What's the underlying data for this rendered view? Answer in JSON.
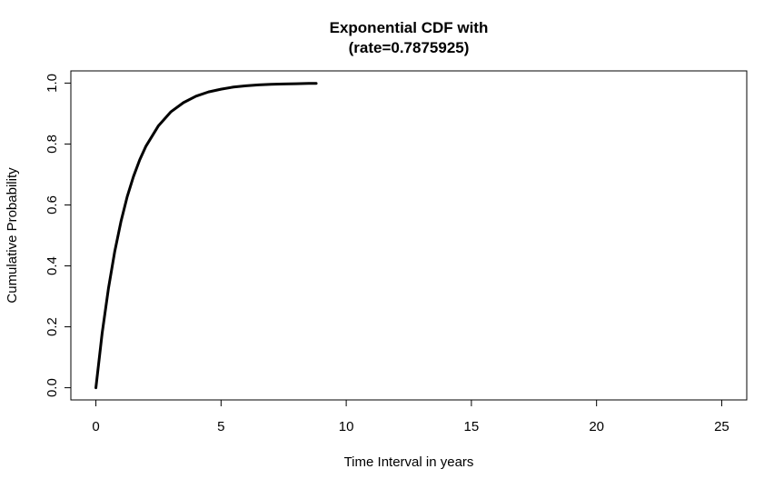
{
  "chart_data": {
    "type": "line",
    "title_line1": "Exponential CDF with",
    "title_line2": "(rate=0.7875925)",
    "xlabel": "Time Interval in years",
    "ylabel": "Cumulative Probability",
    "xlim": [
      -1,
      26
    ],
    "ylim": [
      -0.04,
      1.04
    ],
    "x_ticks": [
      0,
      5,
      10,
      15,
      20,
      25
    ],
    "x_tick_labels": [
      "0",
      "5",
      "10",
      "15",
      "20",
      "25"
    ],
    "y_ticks": [
      0.0,
      0.2,
      0.4,
      0.6,
      0.8,
      1.0
    ],
    "y_tick_labels": [
      "0.0",
      "0.2",
      "0.4",
      "0.6",
      "0.8",
      "1.0"
    ],
    "grid": false,
    "series": [
      {
        "rate": 0.7875925,
        "x": [
          0,
          0.25,
          0.5,
          0.75,
          1,
          1.25,
          1.5,
          1.75,
          2,
          2.5,
          3,
          3.5,
          4,
          4.5,
          5,
          5.5,
          6,
          6.5,
          7,
          7.5,
          8,
          8.5,
          8.8
        ],
        "values": [
          0,
          0.179,
          0.325,
          0.446,
          0.545,
          0.627,
          0.693,
          0.748,
          0.793,
          0.86,
          0.906,
          0.936,
          0.957,
          0.971,
          0.98,
          0.987,
          0.991,
          0.994,
          0.996,
          0.997,
          0.998,
          0.999,
          0.999
        ],
        "color": "#000000"
      }
    ]
  }
}
